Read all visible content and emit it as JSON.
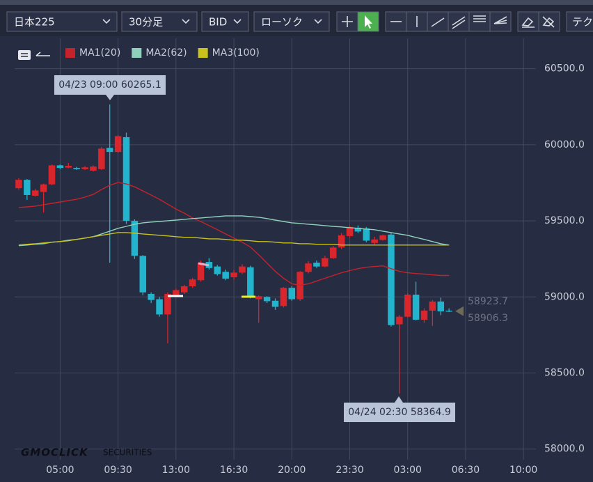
{
  "toolbar": {
    "symbol": "日本225",
    "interval": "30分足",
    "side": "BID",
    "chart_type": "ローソク",
    "more": "テク"
  },
  "chart_data": {
    "type": "candlestick",
    "categories": [
      null,
      null,
      null,
      null,
      null,
      "05:00",
      null,
      null,
      null,
      null,
      null,
      null,
      "09:30",
      null,
      null,
      null,
      null,
      null,
      null,
      "13:00",
      null,
      null,
      null,
      null,
      null,
      null,
      "16:30",
      null,
      null,
      null,
      null,
      null,
      null,
      "20:00",
      null,
      null,
      null,
      null,
      null,
      null,
      "23:30",
      null,
      null,
      null,
      null,
      null,
      null,
      "03:00",
      null,
      null,
      null,
      null,
      null,
      null,
      "06:30",
      null,
      null,
      null,
      null,
      null,
      null,
      "10:00",
      null
    ],
    "open": [
      59715,
      59770,
      59665,
      59690,
      59740,
      59865,
      59850,
      59848,
      59840,
      59830,
      59840,
      59980,
      59953,
      60050,
      59500,
      59270,
      59020,
      58985,
      58885,
      59010,
      59030,
      59070,
      59110,
      59230,
      59200,
      59165,
      59130,
      59160,
      59195,
      58985,
      59000,
      58975,
      58940,
      59060,
      58985,
      59165,
      59225,
      59200,
      59255,
      59325,
      59400,
      59455,
      59450,
      59355,
      59375,
      59410,
      58820,
      58870,
      59015,
      58850,
      58910,
      58970,
      58910,
      null,
      null,
      null,
      null,
      null,
      null,
      null,
      null,
      null,
      null
    ],
    "high": [
      59780,
      59775,
      59710,
      59745,
      59870,
      59870,
      59880,
      59855,
      59860,
      59865,
      59985,
      60265.1,
      60065,
      60080,
      59510,
      59275,
      59030,
      59000,
      59030,
      59055,
      59080,
      59125,
      59240,
      59255,
      59210,
      59180,
      59175,
      59215,
      59205,
      59010,
      59005,
      58990,
      59065,
      59070,
      59170,
      59235,
      59240,
      59270,
      59335,
      59420,
      59470,
      59470,
      59460,
      59395,
      59410,
      59420,
      58880,
      59025,
      59100,
      58925,
      58980,
      58995,
      58925,
      null,
      null,
      null,
      null,
      null,
      null,
      null,
      null,
      null,
      null
    ],
    "low": [
      59705,
      59638,
      59660,
      59555,
      59735,
      59840,
      59845,
      59835,
      59835,
      59825,
      59835,
      59225,
      59945,
      59480,
      59250,
      59010,
      58960,
      58870,
      58695,
      59000,
      59020,
      59060,
      59100,
      59180,
      59140,
      59110,
      59115,
      59150,
      58990,
      58830,
      58960,
      58915,
      58930,
      58975,
      58975,
      59155,
      59190,
      59195,
      59250,
      59315,
      59390,
      59420,
      59360,
      59345,
      59370,
      58805,
      58364.9,
      58865,
      58845,
      58830,
      58810,
      58880,
      58900,
      null,
      null,
      null,
      null,
      null,
      null,
      null,
      null,
      null,
      null
    ],
    "close": [
      59770,
      59670,
      59700,
      59740,
      59865,
      59848,
      59862,
      59840,
      59852,
      59857,
      59975,
      59953,
      60057,
      59500,
      59270,
      59030,
      58980,
      58885,
      59020,
      59045,
      59070,
      59115,
      59225,
      59190,
      59150,
      59120,
      59160,
      59200,
      59000,
      59005,
      58972,
      58935,
      59060,
      58985,
      59165,
      59220,
      59200,
      59255,
      59325,
      59405,
      59460,
      59430,
      59370,
      59378,
      59405,
      58815,
      58870,
      59015,
      58850,
      58910,
      58970,
      58905,
      58906.3,
      null,
      null,
      null,
      null,
      null,
      null,
      null,
      null,
      null,
      null
    ],
    "up_color": "#d9262c",
    "down_color": "#22b4cc",
    "series": [
      {
        "name": "MA1(20)",
        "color": "#c4232b",
        "values": [
          59588,
          59592,
          59597,
          59606,
          59615,
          59624,
          59633,
          59642,
          59656,
          59674,
          59706,
          59734,
          59752,
          59743,
          59724,
          59697,
          59670,
          59642,
          59610,
          59578,
          59551,
          59519,
          59496,
          59469,
          59442,
          59414,
          59387,
          59360,
          59328,
          59277,
          59223,
          59168,
          59123,
          59086,
          59077,
          59086,
          59104,
          59123,
          59141,
          59159,
          59173,
          59186,
          59195,
          59200,
          59204,
          59186,
          59168,
          59159,
          59154,
          59150,
          59145,
          59141,
          59141,
          null,
          null,
          null,
          null,
          null,
          null,
          null,
          null,
          null,
          null
        ]
      },
      {
        "name": "MA2(62)",
        "color": "#8fd1bb",
        "values": [
          59337,
          59341,
          59346,
          59350,
          59360,
          59364,
          59373,
          59378,
          59387,
          59396,
          59414,
          59432,
          59451,
          59464,
          59478,
          59487,
          59492,
          59496,
          59501,
          59505,
          59510,
          59515,
          59519,
          59524,
          59528,
          59533,
          59533,
          59533,
          59528,
          59524,
          59515,
          59505,
          59496,
          59487,
          59483,
          59478,
          59474,
          59469,
          59464,
          59460,
          59455,
          59451,
          59446,
          59442,
          59432,
          59423,
          59414,
          59405,
          59391,
          59378,
          59364,
          59350,
          59341,
          null,
          null,
          null,
          null,
          null,
          null,
          null,
          null,
          null,
          null
        ]
      },
      {
        "name": "MA3(100)",
        "color": "#c9c21d",
        "values": [
          59341,
          59346,
          59350,
          59355,
          59360,
          59364,
          59369,
          59378,
          59387,
          59396,
          59405,
          59414,
          59423,
          59423,
          59419,
          59414,
          59410,
          59405,
          59401,
          59396,
          59392,
          59392,
          59387,
          59382,
          59382,
          59378,
          59373,
          59373,
          59369,
          59364,
          59364,
          59360,
          59355,
          59355,
          59350,
          59350,
          59346,
          59346,
          59346,
          59341,
          59341,
          59341,
          59341,
          59341,
          59341,
          59341,
          59341,
          59341,
          59341,
          59341,
          59341,
          59341,
          59341,
          null,
          null,
          null,
          null,
          null,
          null,
          null,
          null,
          null,
          null
        ]
      }
    ],
    "ylim": [
      57930,
      60700
    ],
    "yticks": [
      {
        "value": 58000,
        "label": "58000.0"
      },
      {
        "value": 58500,
        "label": "58500.0"
      },
      {
        "value": 59000,
        "label": "59000.0"
      },
      {
        "value": 59500,
        "label": "59500.0"
      },
      {
        "value": 60000,
        "label": "60000.0"
      },
      {
        "value": 60500,
        "label": "60500.0"
      }
    ],
    "grid": true,
    "price_labels": [
      58923.7,
      58906.3
    ],
    "annotations": [
      "04/23 09:00 60265.1",
      "04/24 02:30 58364.9"
    ],
    "watermark": [
      "GMOCLICK",
      "SECURITIES"
    ]
  }
}
